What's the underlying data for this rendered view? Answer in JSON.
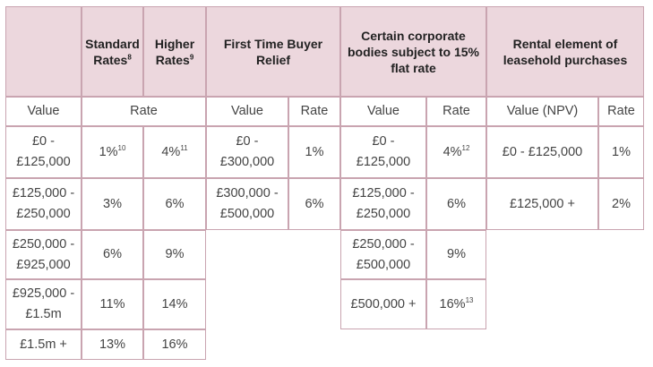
{
  "headers": {
    "standard_rates": "Standard Rates",
    "standard_sup": "8",
    "higher_rates": "Higher Rates",
    "higher_sup": "9",
    "first_time_buyer": "First Time Buyer Relief",
    "corporate": "Certain corporate bodies subject to 15% flat rate",
    "rental": "Rental element of leasehold purchases"
  },
  "subheaders": {
    "value": "Value",
    "rate": "Rate",
    "ftb_value": "Value",
    "ftb_rate": "Rate",
    "corp_value": "Value",
    "corp_rate": "Rate",
    "rental_value": "Value (NPV)",
    "rental_rate": "Rate"
  },
  "standard_rows": [
    {
      "value": [
        "£0 -",
        "£125,000"
      ],
      "standard": "1%",
      "standard_sup": "10",
      "higher": "4%",
      "higher_sup": "11"
    },
    {
      "value": [
        "£125,000 -",
        "£250,000"
      ],
      "standard": "3%",
      "higher": "6%"
    },
    {
      "value": [
        "£250,000 -",
        "£925,000"
      ],
      "standard": "6%",
      "higher": "9%"
    },
    {
      "value": [
        "£925,000 -",
        "£1.5m"
      ],
      "standard": "11%",
      "higher": "14%"
    },
    {
      "value": [
        "£1.5m +"
      ],
      "standard": "13%",
      "higher": "16%"
    }
  ],
  "ftb_rows": [
    {
      "value": [
        "£0 -",
        "£300,000"
      ],
      "rate": "1%"
    },
    {
      "value": [
        "£300,000 -",
        "£500,000"
      ],
      "rate": "6%"
    }
  ],
  "corp_rows": [
    {
      "value": [
        "£0 -",
        "£125,000"
      ],
      "rate": "4%",
      "rate_sup": "12"
    },
    {
      "value": [
        "£125,000 -",
        "£250,000"
      ],
      "rate": "6%"
    },
    {
      "value": [
        "£250,000 -",
        "£500,000"
      ],
      "rate": "9%"
    },
    {
      "value": [
        "£500,000 +"
      ],
      "rate": "16%",
      "rate_sup": "13"
    }
  ],
  "rental_rows": [
    {
      "value": "£0 - £125,000",
      "rate": "1%"
    },
    {
      "value": "£125,000 +",
      "rate": "2%"
    }
  ]
}
